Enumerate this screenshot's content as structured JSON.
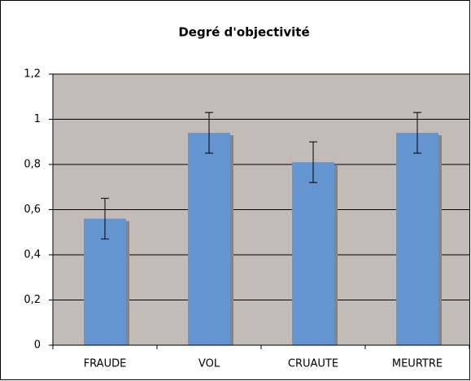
{
  "chart_data": {
    "type": "bar",
    "title": "Degré d'objectivité",
    "categories": [
      "FRAUDE",
      "VOL",
      "CRUAUTE",
      "MEURTRE"
    ],
    "values": [
      0.56,
      0.94,
      0.81,
      0.94
    ],
    "errors": [
      0.09,
      0.09,
      0.09,
      0.09
    ],
    "color": "#6495d0",
    "ylim": [
      0,
      1.2
    ],
    "yticks": [
      0,
      {
        "value": 0.2,
        "label": "0,2"
      },
      {
        "value": 0.4,
        "label": "0,4"
      },
      {
        "value": 0.6,
        "label": "0,6"
      },
      {
        "value": 0.8,
        "label": "0,8"
      },
      1,
      {
        "value": 1.2,
        "label": "1,2"
      }
    ],
    "grid": true
  }
}
